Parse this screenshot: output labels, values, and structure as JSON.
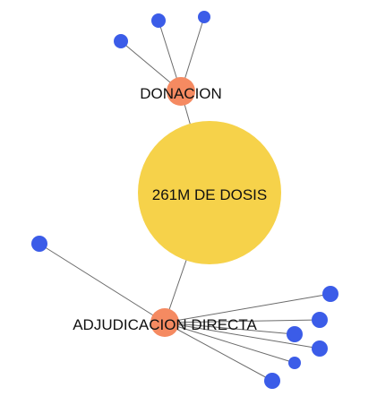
{
  "center": {
    "label": "261M DE DOSIS",
    "color": "#f6d24a"
  },
  "categories": [
    {
      "id": "donacion",
      "label": "DONACION",
      "color": "#f58a61",
      "leaf_count": 3,
      "leaf_color": "#3b5ce8"
    },
    {
      "id": "adjudicacion",
      "label": "ADJUDICACION DIRECTA",
      "color": "#f58a61",
      "leaf_count": 7,
      "leaf_color": "#3b5ce8"
    }
  ]
}
